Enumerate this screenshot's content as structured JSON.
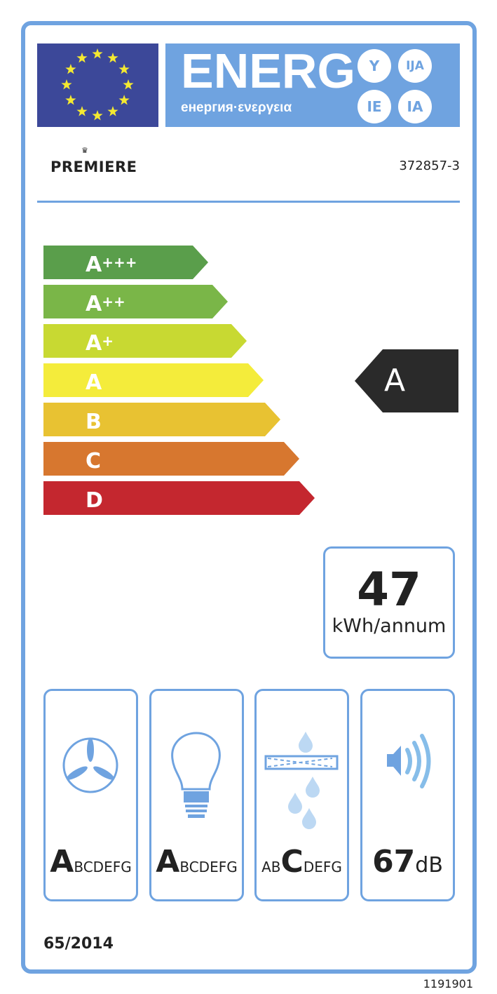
{
  "header": {
    "energy_title": "ENERG",
    "energy_subtitle": "енергия·ενεργεια",
    "suffixes": [
      "Y",
      "IJA",
      "IE",
      "IA"
    ]
  },
  "brand": "PREMIERE",
  "model": "372857-3",
  "scale": [
    {
      "letter": "A",
      "plus": "+++",
      "color": "#5a9e4b"
    },
    {
      "letter": "A",
      "plus": "++",
      "color": "#7ab648"
    },
    {
      "letter": "A",
      "plus": "+",
      "color": "#c8d932"
    },
    {
      "letter": "A",
      "plus": "",
      "color": "#f4ec3b"
    },
    {
      "letter": "B",
      "plus": "",
      "color": "#e8c232"
    },
    {
      "letter": "C",
      "plus": "",
      "color": "#d7772f"
    },
    {
      "letter": "D",
      "plus": "",
      "color": "#c4272f"
    }
  ],
  "rating": "A",
  "consumption": {
    "value": "47",
    "unit": "kWh/annum"
  },
  "pictograms": [
    {
      "icon": "fan-icon",
      "big": "A",
      "rest": "BCDEFG",
      "pre": ""
    },
    {
      "icon": "light-bulb-icon",
      "big": "A",
      "rest": "BCDEFG",
      "pre": ""
    },
    {
      "icon": "grease-filter-icon",
      "big": "C",
      "rest": "DEFG",
      "pre": "AB"
    },
    {
      "icon": "speaker-icon",
      "value": "67",
      "unit": "dB"
    }
  ],
  "regulation": "65/2014",
  "label_code": "1191901",
  "colors": {
    "accent": "#6fa3e0",
    "eu_blue": "#3c4899",
    "rating": "#2a2a2a"
  }
}
